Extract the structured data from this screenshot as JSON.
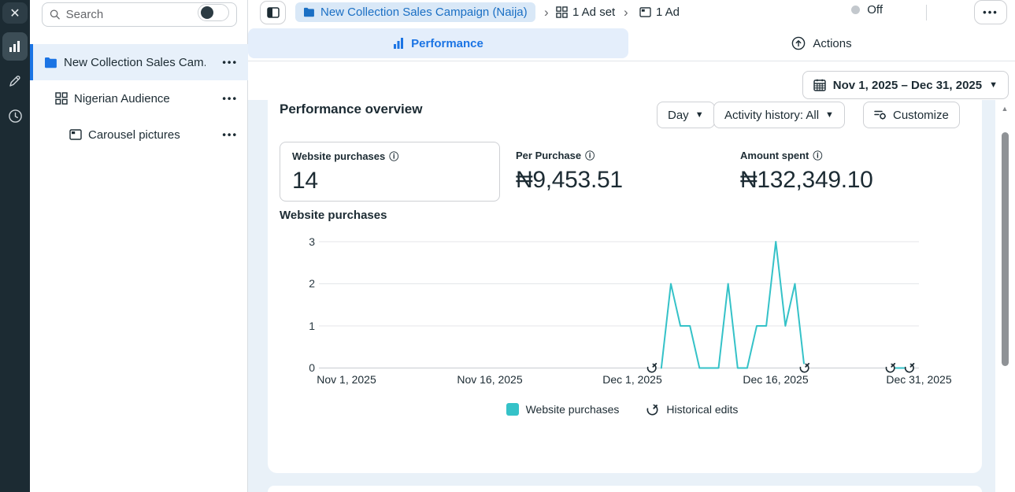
{
  "colors": {
    "accent_blue": "#1b74e4",
    "accent_teal": "#35c2c8",
    "rail_bg": "#1c2b33",
    "content_bg": "#e9f1f8",
    "selected_row_bg": "#e7f0fa",
    "breadcrumb_pill_bg": "#d9e8f7"
  },
  "rail": {
    "icons": [
      {
        "name": "close"
      },
      {
        "name": "analytics",
        "active": true
      },
      {
        "name": "edit"
      },
      {
        "name": "history"
      }
    ]
  },
  "side_panel": {
    "search_placeholder": "Search",
    "tree": [
      {
        "label": "New Collection Sales Cam...",
        "icon": "folder-campaign",
        "selected": true
      },
      {
        "label": "Nigerian Audience",
        "icon": "ad-set",
        "selected": false
      },
      {
        "label": "Carousel pictures",
        "icon": "ad",
        "selected": false
      }
    ]
  },
  "topbar": {
    "breadcrumb": [
      {
        "label": "New Collection Sales Campaign (Naija)",
        "icon": "folder-campaign"
      },
      {
        "label": "1 Ad set",
        "icon": "ad-set"
      },
      {
        "label": "1 Ad",
        "icon": "ad"
      }
    ],
    "status": {
      "label": "Off",
      "toggle_on": false
    }
  },
  "tabs": [
    {
      "label": "Performance",
      "active": true,
      "icon": "bar-chart"
    },
    {
      "label": "Actions",
      "active": false,
      "icon": "arrow-up-circle"
    }
  ],
  "date_range": "Nov 1, 2025 – Dec 31, 2025",
  "overview": {
    "title": "Performance overview",
    "controls": [
      {
        "label": "Day",
        "caret": true
      },
      {
        "label": "Activity history: All",
        "caret": true
      },
      {
        "label": "Customize",
        "icon": "settings-sliders"
      }
    ],
    "metrics": [
      {
        "label": "Website purchases",
        "value": "14",
        "boxed": true
      },
      {
        "label": "Per Purchase",
        "value": "₦9,453.51",
        "boxed": false
      },
      {
        "label": "Amount spent",
        "value": "₦132,349.10",
        "boxed": false
      }
    ]
  },
  "chart_data": {
    "type": "line",
    "title": "Website purchases",
    "xlabel": "",
    "ylabel": "",
    "ylim": [
      0,
      3
    ],
    "y_ticks": [
      3,
      2,
      1,
      0
    ],
    "x_domain_days": [
      0,
      60
    ],
    "x_ticks": [
      {
        "day": 0,
        "label": "Nov 1, 2025"
      },
      {
        "day": 15,
        "label": "Nov 16, 2025"
      },
      {
        "day": 30,
        "label": "Dec 1, 2025"
      },
      {
        "day": 45,
        "label": "Dec 16, 2025"
      },
      {
        "day": 60,
        "label": "Dec 31, 2025"
      }
    ],
    "grid": true,
    "legend_position": "bottom",
    "series": [
      {
        "name": "Website purchases",
        "color": "#35c2c8",
        "segments": [
          [
            {
              "date": "Dec 4, 2025",
              "day": 33,
              "value": 0
            },
            {
              "date": "Dec 5, 2025",
              "day": 34,
              "value": 2
            },
            {
              "date": "Dec 6, 2025",
              "day": 35,
              "value": 1
            },
            {
              "date": "Dec 7, 2025",
              "day": 36,
              "value": 1
            },
            {
              "date": "Dec 8, 2025",
              "day": 37,
              "value": 0
            },
            {
              "date": "Dec 9, 2025",
              "day": 38,
              "value": 0
            },
            {
              "date": "Dec 10, 2025",
              "day": 39,
              "value": 0
            },
            {
              "date": "Dec 11, 2025",
              "day": 40,
              "value": 2
            },
            {
              "date": "Dec 12, 2025",
              "day": 41,
              "value": 0
            },
            {
              "date": "Dec 13, 2025",
              "day": 42,
              "value": 0
            },
            {
              "date": "Dec 14, 2025",
              "day": 43,
              "value": 1
            },
            {
              "date": "Dec 15, 2025",
              "day": 44,
              "value": 1
            },
            {
              "date": "Dec 16, 2025",
              "day": 45,
              "value": 3
            },
            {
              "date": "Dec 17, 2025",
              "day": 46,
              "value": 1
            },
            {
              "date": "Dec 18, 2025",
              "day": 47,
              "value": 2
            },
            {
              "date": "Dec 19, 2025",
              "day": 48,
              "value": 0
            }
          ],
          [
            {
              "date": "Dec 28, 2025",
              "day": 57,
              "value": 0
            },
            {
              "date": "Dec 30, 2025",
              "day": 59,
              "value": 0
            }
          ]
        ]
      }
    ],
    "historical_edits": {
      "legend_label": "Historical edits",
      "markers": [
        {
          "day": 32,
          "date": "Dec 3, 2025"
        },
        {
          "day": 48,
          "date": "Dec 19, 2025"
        },
        {
          "day": 57,
          "date": "Dec 28, 2025"
        },
        {
          "day": 59,
          "date": "Dec 30, 2025"
        }
      ]
    }
  }
}
